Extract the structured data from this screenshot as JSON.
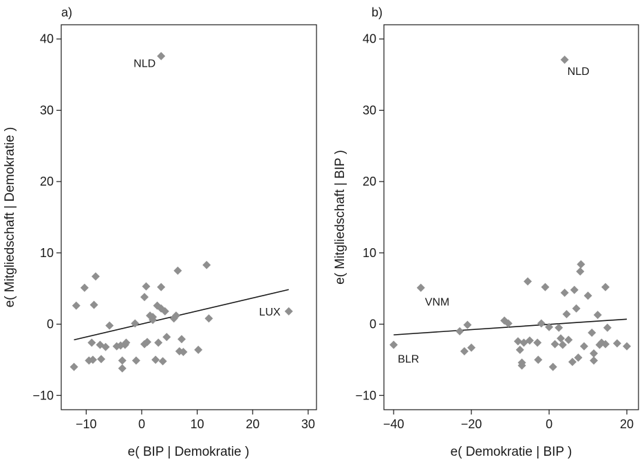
{
  "chart_data": [
    {
      "type": "scatter",
      "panel_label": "a)",
      "xlabel": "e( BIP | Demokratie )",
      "ylabel": "e( Mitgliedschaft | Demokratie )",
      "xlim": [
        -14.5,
        31.5
      ],
      "ylim": [
        -12,
        42
      ],
      "xticks": [
        -10,
        0,
        10,
        20,
        30
      ],
      "yticks": [
        -10,
        0,
        10,
        20,
        30,
        40
      ],
      "xtick_labels": [
        "−10",
        "0",
        "10",
        "20",
        "30"
      ],
      "ytick_labels": [
        "−10",
        "0",
        "10",
        "20",
        "30",
        "40"
      ],
      "points": [
        {
          "x": 3.5,
          "y": 37.6
        },
        {
          "x": 26.5,
          "y": 1.8
        },
        {
          "x": -12.2,
          "y": -6.0
        },
        {
          "x": -11.8,
          "y": 2.6
        },
        {
          "x": -10.3,
          "y": 5.1
        },
        {
          "x": -9.5,
          "y": -5.1
        },
        {
          "x": -9.0,
          "y": -2.6
        },
        {
          "x": -8.8,
          "y": -5.0
        },
        {
          "x": -8.6,
          "y": 2.7
        },
        {
          "x": -8.3,
          "y": 6.7
        },
        {
          "x": -7.5,
          "y": -2.9
        },
        {
          "x": -7.3,
          "y": -4.9
        },
        {
          "x": -6.5,
          "y": -3.2
        },
        {
          "x": -5.8,
          "y": -0.2
        },
        {
          "x": -4.5,
          "y": -3.1
        },
        {
          "x": -3.8,
          "y": -3.0
        },
        {
          "x": -3.5,
          "y": -5.1
        },
        {
          "x": -3.5,
          "y": -6.2
        },
        {
          "x": -3.0,
          "y": -2.9
        },
        {
          "x": -2.8,
          "y": -2.6
        },
        {
          "x": -1.2,
          "y": 0.1
        },
        {
          "x": -1.0,
          "y": -5.1
        },
        {
          "x": 0.5,
          "y": 3.8
        },
        {
          "x": 0.5,
          "y": -2.8
        },
        {
          "x": 0.8,
          "y": 5.3
        },
        {
          "x": 1.0,
          "y": -2.5
        },
        {
          "x": 1.5,
          "y": 1.2
        },
        {
          "x": 2.0,
          "y": 0.6
        },
        {
          "x": 2.0,
          "y": 1.0
        },
        {
          "x": 2.5,
          "y": -5.0
        },
        {
          "x": 2.8,
          "y": 2.6
        },
        {
          "x": 3.0,
          "y": -2.6
        },
        {
          "x": 3.5,
          "y": 5.2
        },
        {
          "x": 3.5,
          "y": 2.2
        },
        {
          "x": 3.8,
          "y": -5.2
        },
        {
          "x": 4.2,
          "y": 1.8
        },
        {
          "x": 4.5,
          "y": -1.8
        },
        {
          "x": 5.8,
          "y": 0.8
        },
        {
          "x": 6.2,
          "y": 1.2
        },
        {
          "x": 6.5,
          "y": 7.5
        },
        {
          "x": 6.8,
          "y": -3.8
        },
        {
          "x": 7.2,
          "y": -2.1
        },
        {
          "x": 7.5,
          "y": -3.9
        },
        {
          "x": 10.2,
          "y": -3.6
        },
        {
          "x": 11.7,
          "y": 8.3
        },
        {
          "x": 12.1,
          "y": 0.8
        }
      ],
      "fit_line": {
        "x": [
          -12.2,
          26.5
        ],
        "y": [
          -2.2,
          4.85
        ]
      },
      "annotations": [
        {
          "text": "NLD",
          "x": 3.5,
          "y": 37.6
        },
        {
          "text": "LUX",
          "x": 26.5,
          "y": 1.8
        }
      ]
    },
    {
      "type": "scatter",
      "panel_label": "b)",
      "xlabel": "e( Demokratie | BIP )",
      "ylabel": "e( Mitgliedschaft | BIP )",
      "xlim": [
        -42.5,
        23
      ],
      "ylim": [
        -12,
        42
      ],
      "xticks": [
        -40,
        -20,
        0,
        20
      ],
      "yticks": [
        -10,
        0,
        10,
        20,
        30,
        40
      ],
      "xtick_labels": [
        "−40",
        "−20",
        "0",
        "20"
      ],
      "ytick_labels": [
        "−10",
        "0",
        "10",
        "20",
        "30",
        "40"
      ],
      "points": [
        {
          "x": 4.0,
          "y": 37.1
        },
        {
          "x": -33.0,
          "y": 5.1
        },
        {
          "x": -40.0,
          "y": -2.9
        },
        {
          "x": -23.0,
          "y": -1.0
        },
        {
          "x": -21.8,
          "y": -3.8
        },
        {
          "x": -21.0,
          "y": -0.1
        },
        {
          "x": -20.0,
          "y": -3.3
        },
        {
          "x": -11.5,
          "y": 0.5
        },
        {
          "x": -10.5,
          "y": 0.1
        },
        {
          "x": -8.0,
          "y": -2.4
        },
        {
          "x": -7.5,
          "y": -3.6
        },
        {
          "x": -7.0,
          "y": -5.4
        },
        {
          "x": -7.0,
          "y": -5.8
        },
        {
          "x": -6.5,
          "y": -2.6
        },
        {
          "x": -5.5,
          "y": 6.0
        },
        {
          "x": -5.0,
          "y": -2.3
        },
        {
          "x": -3.0,
          "y": -2.6
        },
        {
          "x": -2.8,
          "y": -5.0
        },
        {
          "x": -2.0,
          "y": 0.1
        },
        {
          "x": -1.0,
          "y": 5.2
        },
        {
          "x": 0.0,
          "y": -0.4
        },
        {
          "x": 1.0,
          "y": -6.0
        },
        {
          "x": 1.5,
          "y": -2.8
        },
        {
          "x": 2.5,
          "y": -0.5
        },
        {
          "x": 3.0,
          "y": -2.0
        },
        {
          "x": 3.5,
          "y": -2.9
        },
        {
          "x": 4.0,
          "y": 4.4
        },
        {
          "x": 4.5,
          "y": 1.4
        },
        {
          "x": 5.0,
          "y": -2.2
        },
        {
          "x": 6.0,
          "y": -5.3
        },
        {
          "x": 6.5,
          "y": 4.8
        },
        {
          "x": 7.0,
          "y": 2.2
        },
        {
          "x": 7.5,
          "y": -4.7
        },
        {
          "x": 8.0,
          "y": 7.4
        },
        {
          "x": 8.2,
          "y": 8.4
        },
        {
          "x": 9.0,
          "y": -3.1
        },
        {
          "x": 10.0,
          "y": 4.0
        },
        {
          "x": 11.0,
          "y": -1.2
        },
        {
          "x": 11.5,
          "y": -4.1
        },
        {
          "x": 11.5,
          "y": -5.1
        },
        {
          "x": 12.5,
          "y": 1.3
        },
        {
          "x": 13.0,
          "y": -2.9
        },
        {
          "x": 13.5,
          "y": -2.6
        },
        {
          "x": 14.5,
          "y": -2.8
        },
        {
          "x": 14.5,
          "y": 5.2
        },
        {
          "x": 15.0,
          "y": -0.5
        },
        {
          "x": 17.5,
          "y": -2.7
        },
        {
          "x": 20.0,
          "y": -3.1
        }
      ],
      "fit_line": {
        "x": [
          -40,
          20
        ],
        "y": [
          -1.5,
          0.7
        ]
      },
      "annotations": [
        {
          "text": "NLD",
          "x": 4.0,
          "y": 37.1
        },
        {
          "text": "VNM",
          "x": -33.0,
          "y": 5.1
        },
        {
          "text": "BLR",
          "x": -40.0,
          "y": -2.9
        }
      ]
    }
  ]
}
